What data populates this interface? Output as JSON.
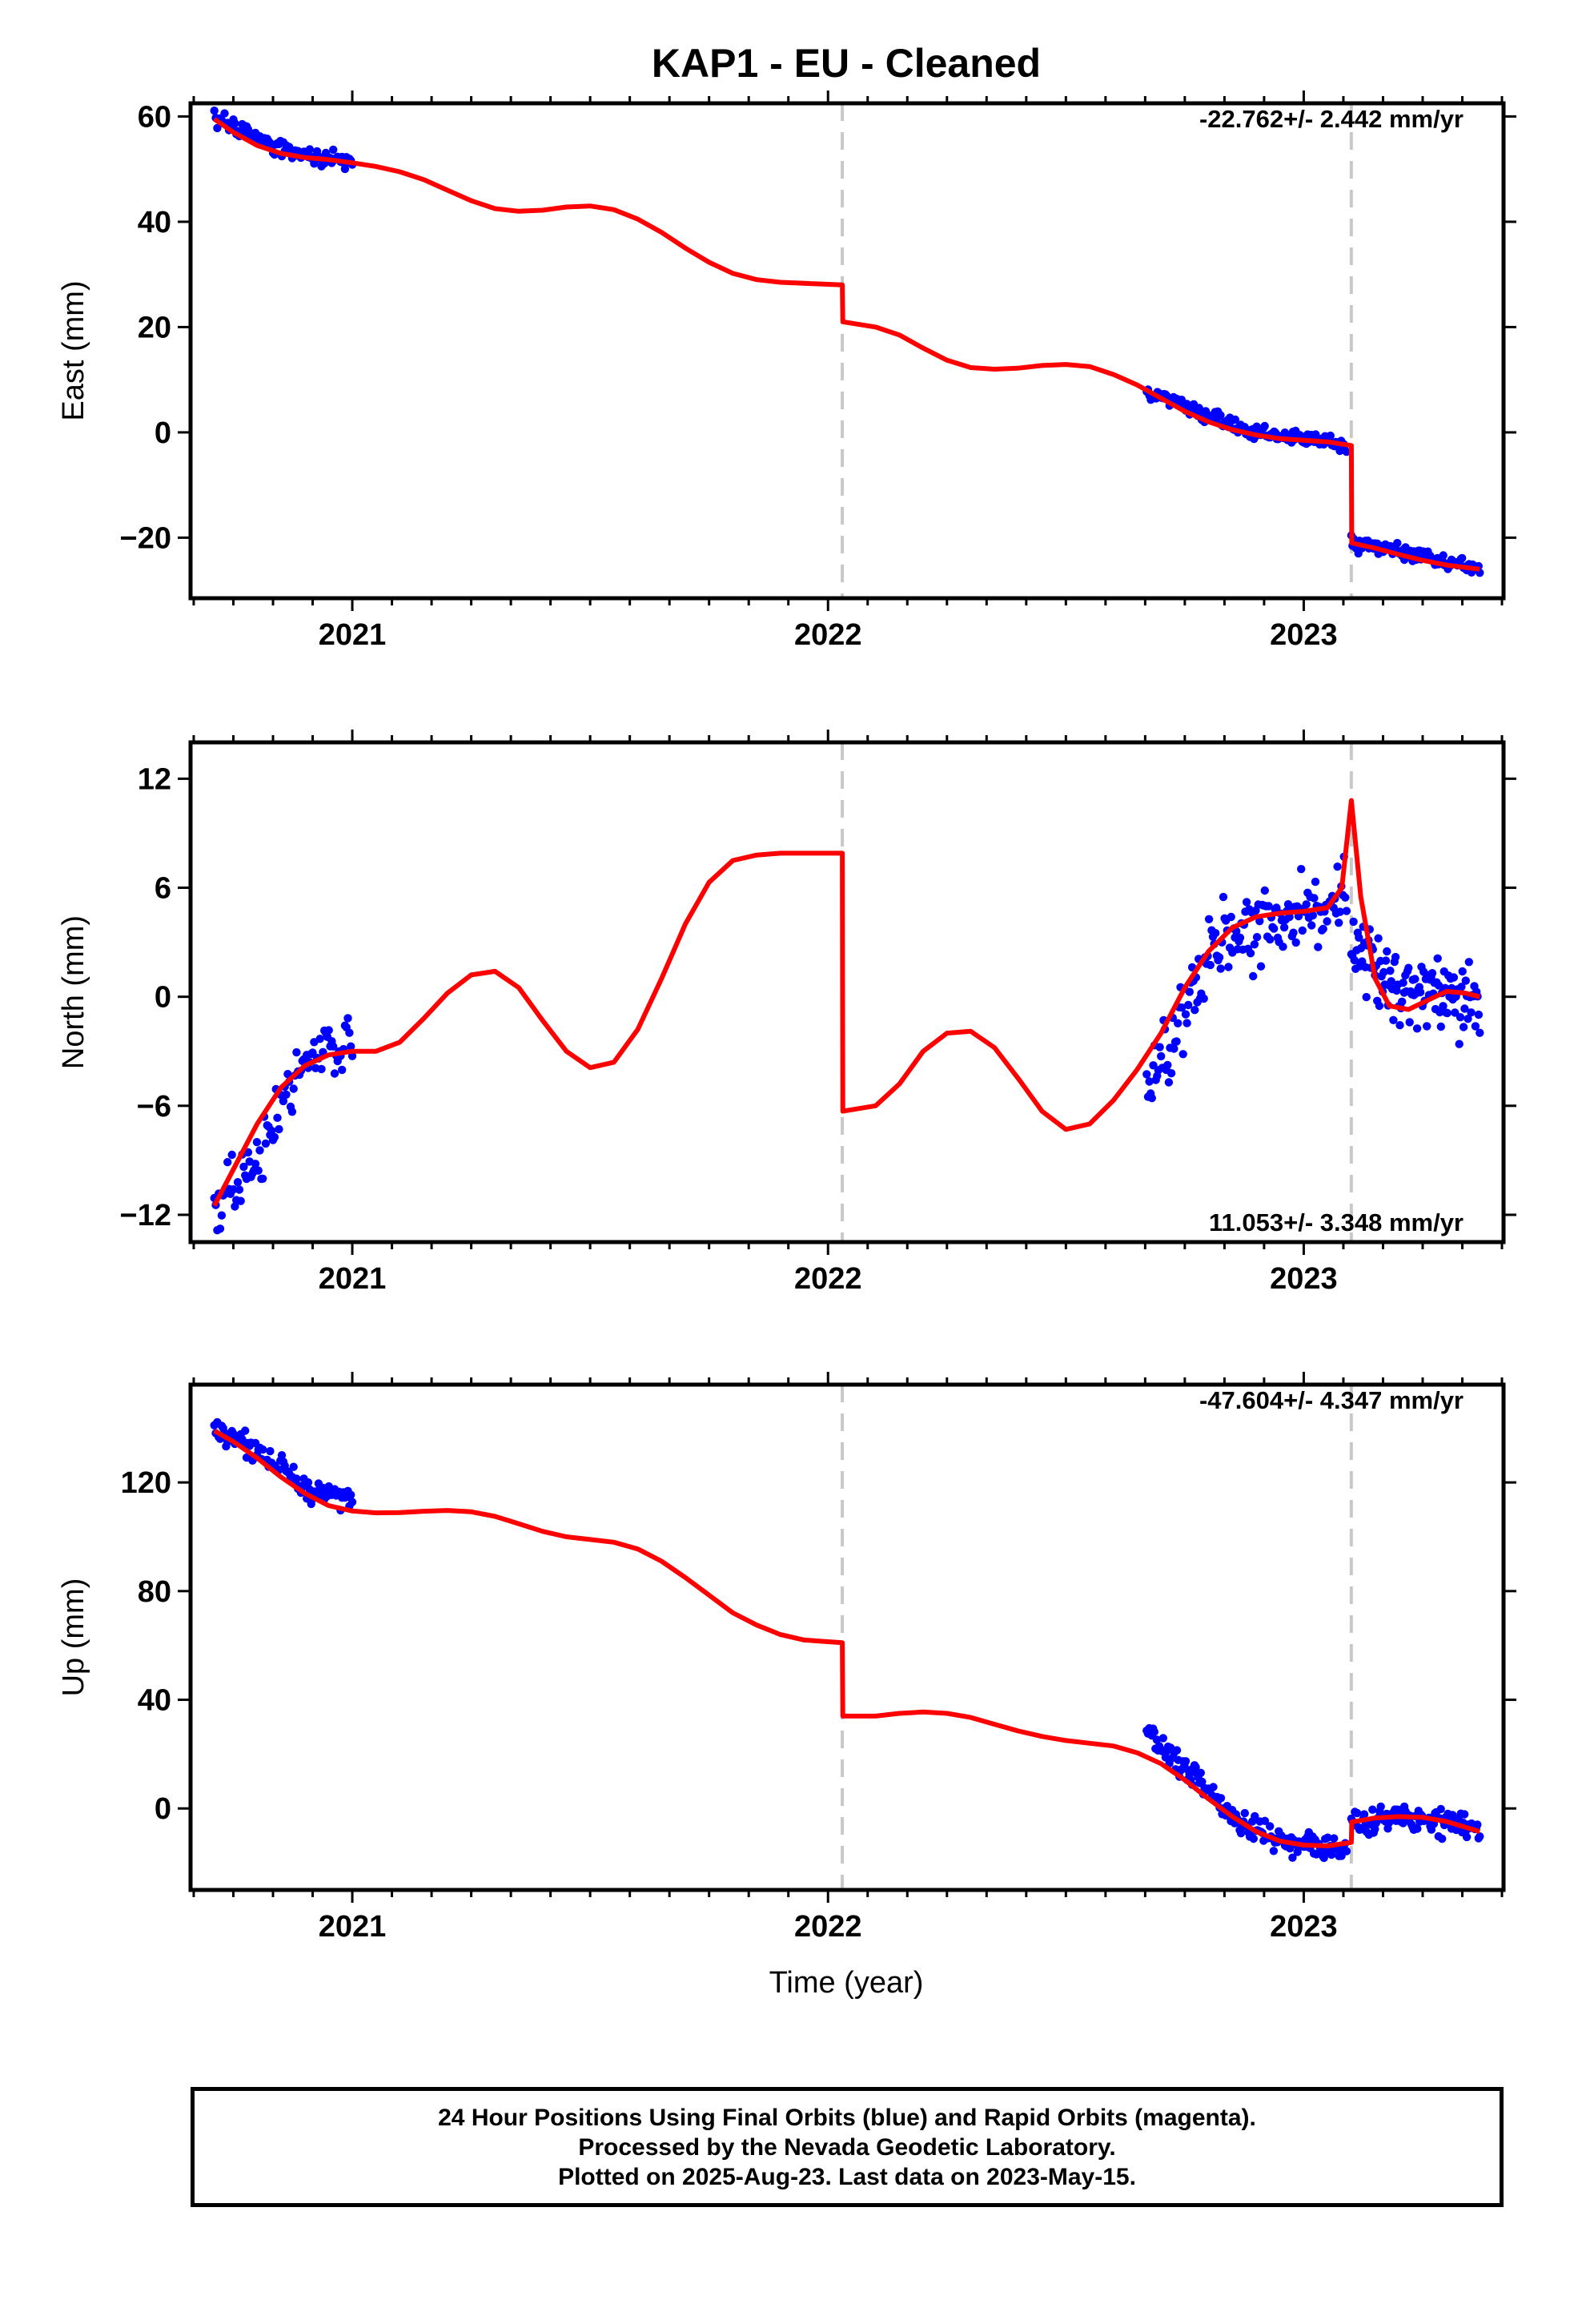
{
  "title": "KAP1  - EU - Cleaned",
  "xlabel": "Time (year)",
  "footer": {
    "line1": "24 Hour Positions Using Final Orbits (blue) and Rapid Orbits (magenta).",
    "line2": "Processed by the Nevada Geodetic Laboratory.",
    "line3": "Plotted on 2025-Aug-23. Last data on 2023-May-15."
  },
  "colors": {
    "data": "#0000ff",
    "model": "#ff0000",
    "steps": "#c8c8c8",
    "frame": "#000000"
  },
  "chart_data": [
    {
      "type": "scatter",
      "panel": "east",
      "ylabel": "East (mm)",
      "rate_label": "-22.762+/- 2.442 mm/yr",
      "rate_position": "top-right",
      "xlim": [
        2020.66,
        2023.42
      ],
      "ylim": [
        -31.5,
        62.5
      ],
      "x_ticks": [
        2021,
        2022,
        2023
      ],
      "y_ticks": [
        60,
        40,
        20,
        0,
        -20
      ],
      "y_tick_labels": [
        "60",
        "40",
        "20",
        "0",
        "−20"
      ],
      "step_epochs": [
        2022.03,
        2023.1
      ],
      "series": [
        {
          "kind": "points",
          "segments": [
            {
              "x_start": 2020.71,
              "x_end": 2021.0,
              "n": 95,
              "curve": [
                [
                  2020.71,
                  60.0
                ],
                [
                  2020.8,
                  56.0
                ],
                [
                  2020.88,
                  53.0
                ],
                [
                  2021.0,
                  51.5
                ]
              ],
              "scatter": 1.3,
              "seed": 11
            },
            {
              "x_start": 2022.67,
              "x_end": 2023.09,
              "n": 150,
              "curve": [
                [
                  2022.67,
                  8.0
                ],
                [
                  2022.8,
                  3.0
                ],
                [
                  2022.9,
                  0.0
                ],
                [
                  2023.09,
                  -2.5
                ]
              ],
              "scatter": 1.1,
              "seed": 12
            },
            {
              "x_start": 2023.1,
              "x_end": 2023.37,
              "n": 110,
              "curve": [
                [
                  2023.1,
                  -21.0
                ],
                [
                  2023.25,
                  -23.5
                ],
                [
                  2023.37,
                  -26.0
                ]
              ],
              "scatter": 1.3,
              "seed": 13
            }
          ]
        },
        {
          "kind": "model",
          "points": [
            [
              2020.71,
              59.5
            ],
            [
              2020.75,
              57.0
            ],
            [
              2020.8,
              54.5
            ],
            [
              2020.85,
              53.0
            ],
            [
              2020.9,
              52.2
            ],
            [
              2020.95,
              51.8
            ],
            [
              2021.0,
              51.2
            ],
            [
              2021.05,
              50.5
            ],
            [
              2021.1,
              49.5
            ],
            [
              2021.15,
              48.0
            ],
            [
              2021.2,
              46.0
            ],
            [
              2021.25,
              44.0
            ],
            [
              2021.3,
              42.5
            ],
            [
              2021.35,
              42.0
            ],
            [
              2021.4,
              42.2
            ],
            [
              2021.45,
              42.8
            ],
            [
              2021.5,
              43.0
            ],
            [
              2021.55,
              42.3
            ],
            [
              2021.6,
              40.5
            ],
            [
              2021.65,
              38.0
            ],
            [
              2021.7,
              35.0
            ],
            [
              2021.75,
              32.3
            ],
            [
              2021.8,
              30.2
            ],
            [
              2021.85,
              29.0
            ],
            [
              2021.9,
              28.5
            ],
            [
              2021.95,
              28.3
            ],
            [
              2022.03,
              28.0
            ],
            [
              2022.031,
              21.0
            ],
            [
              2022.1,
              20.0
            ],
            [
              2022.15,
              18.5
            ],
            [
              2022.2,
              16.0
            ],
            [
              2022.25,
              13.7
            ],
            [
              2022.3,
              12.3
            ],
            [
              2022.35,
              12.0
            ],
            [
              2022.4,
              12.2
            ],
            [
              2022.45,
              12.7
            ],
            [
              2022.5,
              12.9
            ],
            [
              2022.55,
              12.5
            ],
            [
              2022.6,
              11.0
            ],
            [
              2022.65,
              9.0
            ],
            [
              2022.7,
              6.5
            ],
            [
              2022.75,
              4.0
            ],
            [
              2022.8,
              2.0
            ],
            [
              2022.85,
              0.5
            ],
            [
              2022.9,
              -0.5
            ],
            [
              2022.95,
              -1.2
            ],
            [
              2023.0,
              -1.5
            ],
            [
              2023.05,
              -1.8
            ],
            [
              2023.1,
              -2.5
            ],
            [
              2023.101,
              -21.0
            ],
            [
              2023.15,
              -22.0
            ],
            [
              2023.2,
              -23.2
            ],
            [
              2023.25,
              -24.3
            ],
            [
              2023.3,
              -25.2
            ],
            [
              2023.37,
              -26.0
            ]
          ]
        }
      ]
    },
    {
      "type": "scatter",
      "panel": "north",
      "ylabel": "North (mm)",
      "rate_label": "11.053+/- 3.348 mm/yr",
      "rate_position": "bottom-right",
      "xlim": [
        2020.66,
        2023.42
      ],
      "ylim": [
        -13.5,
        14.0
      ],
      "x_ticks": [
        2021,
        2022,
        2023
      ],
      "y_ticks": [
        12,
        6,
        0,
        -6,
        -12
      ],
      "y_tick_labels": [
        "12",
        "6",
        "0",
        "−6",
        "−12"
      ],
      "step_epochs": [
        2022.03,
        2023.1
      ],
      "series": [
        {
          "kind": "points",
          "segments": [
            {
              "x_start": 2020.71,
              "x_end": 2021.0,
              "n": 95,
              "curve": [
                [
                  2020.71,
                  -11.5
                ],
                [
                  2020.8,
                  -9.0
                ],
                [
                  2020.87,
                  -5.0
                ],
                [
                  2020.93,
                  -3.0
                ],
                [
                  2021.0,
                  -2.0
                ]
              ],
              "scatter": 1.4,
              "seed": 21
            },
            {
              "x_start": 2022.67,
              "x_end": 2023.09,
              "n": 155,
              "curve": [
                [
                  2022.67,
                  -5.0
                ],
                [
                  2022.75,
                  -1.0
                ],
                [
                  2022.8,
                  3.0
                ],
                [
                  2022.9,
                  4.0
                ],
                [
                  2023.0,
                  4.8
                ],
                [
                  2023.09,
                  5.0
                ]
              ],
              "scatter": 1.7,
              "seed": 22
            },
            {
              "x_start": 2023.1,
              "x_end": 2023.37,
              "n": 120,
              "curve": [
                [
                  2023.1,
                  3.0
                ],
                [
                  2023.2,
                  0.5
                ],
                [
                  2023.3,
                  0.0
                ],
                [
                  2023.37,
                  -0.5
                ]
              ],
              "scatter": 1.8,
              "seed": 23
            }
          ]
        },
        {
          "kind": "model",
          "points": [
            [
              2020.71,
              -11.5
            ],
            [
              2020.75,
              -9.5
            ],
            [
              2020.8,
              -7.0
            ],
            [
              2020.85,
              -5.0
            ],
            [
              2020.9,
              -3.8
            ],
            [
              2020.95,
              -3.2
            ],
            [
              2021.0,
              -3.0
            ],
            [
              2021.05,
              -3.0
            ],
            [
              2021.1,
              -2.5
            ],
            [
              2021.15,
              -1.2
            ],
            [
              2021.2,
              0.2
            ],
            [
              2021.25,
              1.2
            ],
            [
              2021.3,
              1.4
            ],
            [
              2021.35,
              0.5
            ],
            [
              2021.4,
              -1.3
            ],
            [
              2021.45,
              -3.0
            ],
            [
              2021.5,
              -3.9
            ],
            [
              2021.55,
              -3.6
            ],
            [
              2021.6,
              -1.8
            ],
            [
              2021.65,
              1.0
            ],
            [
              2021.7,
              4.0
            ],
            [
              2021.75,
              6.3
            ],
            [
              2021.8,
              7.5
            ],
            [
              2021.85,
              7.8
            ],
            [
              2021.9,
              7.9
            ],
            [
              2021.95,
              7.9
            ],
            [
              2022.03,
              7.9
            ],
            [
              2022.031,
              -6.3
            ],
            [
              2022.1,
              -6.0
            ],
            [
              2022.15,
              -4.8
            ],
            [
              2022.2,
              -3.0
            ],
            [
              2022.25,
              -2.0
            ],
            [
              2022.3,
              -1.9
            ],
            [
              2022.35,
              -2.8
            ],
            [
              2022.4,
              -4.5
            ],
            [
              2022.45,
              -6.3
            ],
            [
              2022.5,
              -7.3
            ],
            [
              2022.55,
              -7.0
            ],
            [
              2022.6,
              -5.7
            ],
            [
              2022.65,
              -4.0
            ],
            [
              2022.7,
              -2.0
            ],
            [
              2022.75,
              0.5
            ],
            [
              2022.8,
              2.5
            ],
            [
              2022.85,
              3.8
            ],
            [
              2022.9,
              4.4
            ],
            [
              2022.95,
              4.6
            ],
            [
              2023.0,
              4.7
            ],
            [
              2023.05,
              4.9
            ],
            [
              2023.08,
              6.0
            ],
            [
              2023.1,
              10.8
            ],
            [
              2023.12,
              5.5
            ],
            [
              2023.15,
              1.0
            ],
            [
              2023.18,
              -0.5
            ],
            [
              2023.22,
              -0.7
            ],
            [
              2023.26,
              -0.2
            ],
            [
              2023.3,
              0.3
            ],
            [
              2023.34,
              0.2
            ],
            [
              2023.37,
              0.0
            ]
          ]
        }
      ]
    },
    {
      "type": "scatter",
      "panel": "up",
      "ylabel": "Up (mm)",
      "rate_label": "-47.604+/- 4.347 mm/yr",
      "rate_position": "top-right",
      "xlim": [
        2020.66,
        2023.42
      ],
      "ylim": [
        -30.0,
        156.0
      ],
      "x_ticks": [
        2021,
        2022,
        2023
      ],
      "y_ticks": [
        120,
        80,
        40,
        0
      ],
      "y_tick_labels": [
        "120",
        "80",
        "40",
        "0"
      ],
      "step_epochs": [
        2022.03,
        2023.1
      ],
      "series": [
        {
          "kind": "points",
          "segments": [
            {
              "x_start": 2020.71,
              "x_end": 2021.0,
              "n": 95,
              "curve": [
                [
                  2020.71,
                  140.0
                ],
                [
                  2020.8,
                  132.0
                ],
                [
                  2020.9,
                  118.0
                ],
                [
                  2021.0,
                  112.0
                ]
              ],
              "scatter": 3.5,
              "seed": 31
            },
            {
              "x_start": 2022.67,
              "x_end": 2023.09,
              "n": 160,
              "curve": [
                [
                  2022.67,
                  28.0
                ],
                [
                  2022.75,
                  15.0
                ],
                [
                  2022.85,
                  -2.0
                ],
                [
                  2022.95,
                  -12.0
                ],
                [
                  2023.09,
                  -14.0
                ]
              ],
              "scatter": 4.0,
              "seed": 32
            },
            {
              "x_start": 2023.1,
              "x_end": 2023.37,
              "n": 110,
              "curve": [
                [
                  2023.1,
                  -6.0
                ],
                [
                  2023.2,
                  -4.0
                ],
                [
                  2023.3,
                  -5.0
                ],
                [
                  2023.37,
                  -8.0
                ]
              ],
              "scatter": 4.0,
              "seed": 33
            }
          ]
        },
        {
          "kind": "model",
          "points": [
            [
              2020.71,
              139.0
            ],
            [
              2020.75,
              135.0
            ],
            [
              2020.8,
              129.0
            ],
            [
              2020.85,
              122.0
            ],
            [
              2020.9,
              116.0
            ],
            [
              2020.95,
              111.5
            ],
            [
              2021.0,
              109.5
            ],
            [
              2021.05,
              108.8
            ],
            [
              2021.1,
              108.9
            ],
            [
              2021.15,
              109.4
            ],
            [
              2021.2,
              109.7
            ],
            [
              2021.25,
              109.2
            ],
            [
              2021.3,
              107.5
            ],
            [
              2021.35,
              104.8
            ],
            [
              2021.4,
              102.0
            ],
            [
              2021.45,
              100.0
            ],
            [
              2021.5,
              99.0
            ],
            [
              2021.55,
              98.0
            ],
            [
              2021.6,
              95.5
            ],
            [
              2021.65,
              91.0
            ],
            [
              2021.7,
              85.0
            ],
            [
              2021.75,
              78.5
            ],
            [
              2021.8,
              72.0
            ],
            [
              2021.85,
              67.5
            ],
            [
              2021.9,
              64.0
            ],
            [
              2021.95,
              62.0
            ],
            [
              2022.03,
              61.0
            ],
            [
              2022.031,
              34.0
            ],
            [
              2022.1,
              34.0
            ],
            [
              2022.15,
              35.0
            ],
            [
              2022.2,
              35.5
            ],
            [
              2022.25,
              35.0
            ],
            [
              2022.3,
              33.5
            ],
            [
              2022.35,
              31.0
            ],
            [
              2022.4,
              28.5
            ],
            [
              2022.45,
              26.5
            ],
            [
              2022.5,
              25.0
            ],
            [
              2022.55,
              24.0
            ],
            [
              2022.6,
              23.0
            ],
            [
              2022.65,
              20.5
            ],
            [
              2022.7,
              16.5
            ],
            [
              2022.75,
              10.5
            ],
            [
              2022.8,
              3.5
            ],
            [
              2022.85,
              -3.0
            ],
            [
              2022.9,
              -8.5
            ],
            [
              2022.95,
              -12.0
            ],
            [
              2023.0,
              -13.5
            ],
            [
              2023.05,
              -13.8
            ],
            [
              2023.1,
              -12.5
            ],
            [
              2023.101,
              -5.0
            ],
            [
              2023.15,
              -3.5
            ],
            [
              2023.2,
              -3.0
            ],
            [
              2023.25,
              -3.3
            ],
            [
              2023.3,
              -4.8
            ],
            [
              2023.37,
              -8.5
            ]
          ]
        }
      ]
    }
  ]
}
